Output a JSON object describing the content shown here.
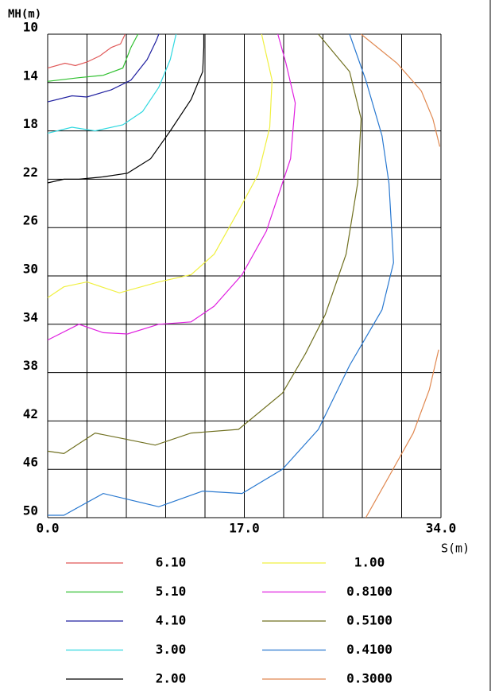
{
  "chart_data": {
    "type": "line",
    "y_label": "MH(m)",
    "x_label": "S(m)",
    "xlim": [
      0,
      34
    ],
    "ylim": [
      50,
      10
    ],
    "xticks": [
      {
        "value": 0,
        "label": "0.0"
      },
      {
        "value": 17,
        "label": "17.0"
      },
      {
        "value": 34,
        "label": "34.0"
      }
    ],
    "yticks": [
      10,
      14,
      18,
      22,
      26,
      30,
      34,
      38,
      42,
      46,
      50
    ],
    "xgrid": [
      0,
      3.4,
      6.8,
      10.2,
      13.6,
      17,
      20.4,
      23.8,
      27.2,
      30.6,
      34
    ],
    "grid": true,
    "series": [
      {
        "name": "6.10",
        "color": "#e05858",
        "x": [
          0,
          1.5,
          2.4,
          3.4,
          4.5,
          5.5,
          6.3,
          6.7
        ],
        "y": [
          12.8,
          12.4,
          12.6,
          12.3,
          11.8,
          11.1,
          10.8,
          10
        ]
      },
      {
        "name": "5.10",
        "color": "#30c030",
        "x": [
          0,
          2.7,
          4.8,
          6.5,
          7.2,
          7.8
        ],
        "y": [
          13.9,
          13.6,
          13.4,
          12.8,
          11.1,
          10
        ]
      },
      {
        "name": "4.10",
        "color": "#2020a0",
        "x": [
          0,
          2.1,
          3.4,
          5.5,
          7.2,
          8.6,
          9.4,
          9.6
        ],
        "y": [
          15.6,
          15.1,
          15.2,
          14.6,
          13.8,
          12.1,
          10.5,
          10
        ]
      },
      {
        "name": "3.00",
        "color": "#30d8e0",
        "x": [
          0,
          2.1,
          4.1,
          6.5,
          8.2,
          9.6,
          10.6,
          11.1
        ],
        "y": [
          18.2,
          17.7,
          18.0,
          17.5,
          16.4,
          14.4,
          12.1,
          10
        ]
      },
      {
        "name": "2.00",
        "color": "#000000",
        "x": [
          0,
          1.4,
          2.7,
          4.8,
          6.9,
          8.9,
          10.6,
          12.4,
          13.4,
          13.5,
          13.5
        ],
        "y": [
          22.3,
          22.0,
          22.0,
          21.8,
          21.5,
          20.3,
          18.0,
          15.4,
          13.1,
          11.1,
          10
        ]
      },
      {
        "name": "1.00",
        "color": "#f0f040",
        "x": [
          0,
          1.4,
          3.4,
          6.2,
          9.6,
          12.4,
          14.4,
          16.5,
          18.2,
          19.2,
          19.4,
          18.5
        ],
        "y": [
          31.8,
          30.9,
          30.5,
          31.4,
          30.5,
          29.9,
          28.2,
          24.6,
          21.6,
          17.7,
          13.8,
          10
        ]
      },
      {
        "name": "0.8100",
        "color": "#e020e0",
        "x": [
          0,
          2.7,
          4.8,
          6.9,
          9.6,
          12.4,
          14.4,
          16.8,
          18.9,
          21.0,
          21.4,
          20.6,
          19.9
        ],
        "y": [
          35.3,
          34.0,
          34.7,
          34.8,
          34.0,
          33.8,
          32.5,
          29.9,
          26.3,
          20.3,
          15.7,
          12.4,
          10
        ]
      },
      {
        "name": "0.5100",
        "color": "#707020",
        "x": [
          0,
          1.4,
          4.1,
          6.2,
          9.3,
          12.4,
          16.5,
          20.3,
          22.3,
          24.0,
          25.8,
          26.8,
          27.1,
          26.1,
          23.4
        ],
        "y": [
          44.5,
          44.7,
          43.0,
          43.4,
          44.0,
          43.0,
          42.7,
          39.7,
          36.4,
          33.2,
          28.2,
          22.3,
          17.0,
          13.1,
          10
        ]
      },
      {
        "name": "0.4100",
        "color": "#2878d0",
        "x": [
          0,
          1.4,
          4.8,
          9.6,
          13.4,
          16.8,
          20.3,
          23.4,
          26.1,
          28.9,
          29.9,
          29.5,
          28.9,
          27.5,
          26.1
        ],
        "y": [
          49.8,
          49.8,
          48.0,
          49.1,
          47.8,
          48.0,
          46.0,
          42.7,
          37.4,
          32.8,
          28.9,
          22.3,
          18.4,
          13.8,
          10
        ]
      },
      {
        "name": "0.3000",
        "color": "#e08850",
        "x": [
          27.1,
          30.2,
          32.3,
          33.3,
          33.9,
          null,
          27.5,
          29.5,
          31.6,
          33.0,
          33.8
        ],
        "y": [
          10,
          12.4,
          14.7,
          17.0,
          19.3,
          null,
          50,
          46.6,
          43.0,
          39.4,
          36.1
        ]
      }
    ]
  }
}
